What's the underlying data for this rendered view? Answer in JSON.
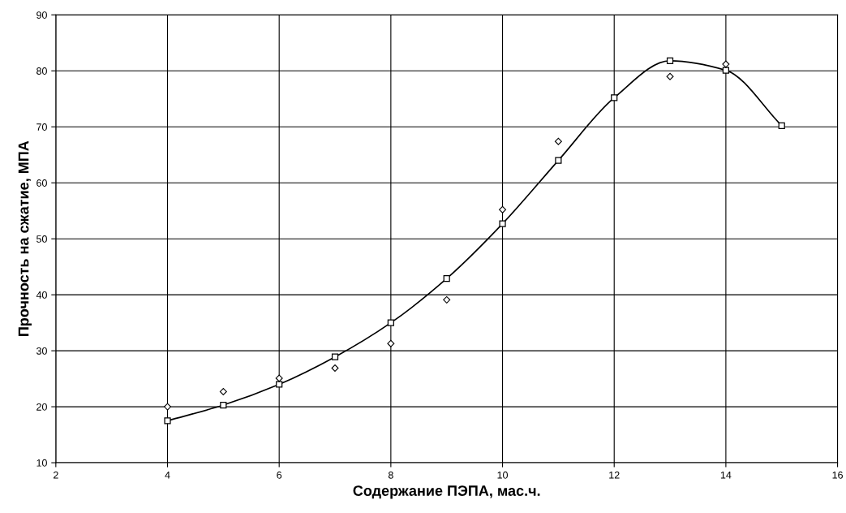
{
  "chart_data": {
    "type": "line",
    "xlabel": "Содержание ПЭПА, мас.ч.",
    "ylabel": "Прочность на сжатие, МПА",
    "xlim": [
      2,
      16
    ],
    "xticks": [
      2,
      4,
      6,
      8,
      10,
      12,
      14,
      16
    ],
    "ylim": [
      10,
      90
    ],
    "yticks": [
      10,
      20,
      30,
      40,
      50,
      60,
      70,
      80,
      90
    ],
    "grid": true,
    "series": [
      {
        "marker": "square",
        "color": "#000000",
        "x": [
          4,
          5,
          6,
          7,
          8,
          9,
          10,
          11,
          12,
          13,
          14,
          15
        ],
        "values": [
          17.5,
          20.3,
          24.0,
          28.9,
          35.0,
          42.9,
          52.7,
          64.0,
          75.2,
          81.8,
          80.1,
          70.2
        ]
      },
      {
        "type": "scatter",
        "marker": "diamond",
        "color": "#000000",
        "x": [
          4,
          5,
          6,
          7,
          8,
          9,
          10,
          11,
          13,
          14
        ],
        "values": [
          20.0,
          22.7,
          25.1,
          26.9,
          31.3,
          39.1,
          55.2,
          67.4,
          79.0,
          81.2
        ]
      }
    ]
  }
}
